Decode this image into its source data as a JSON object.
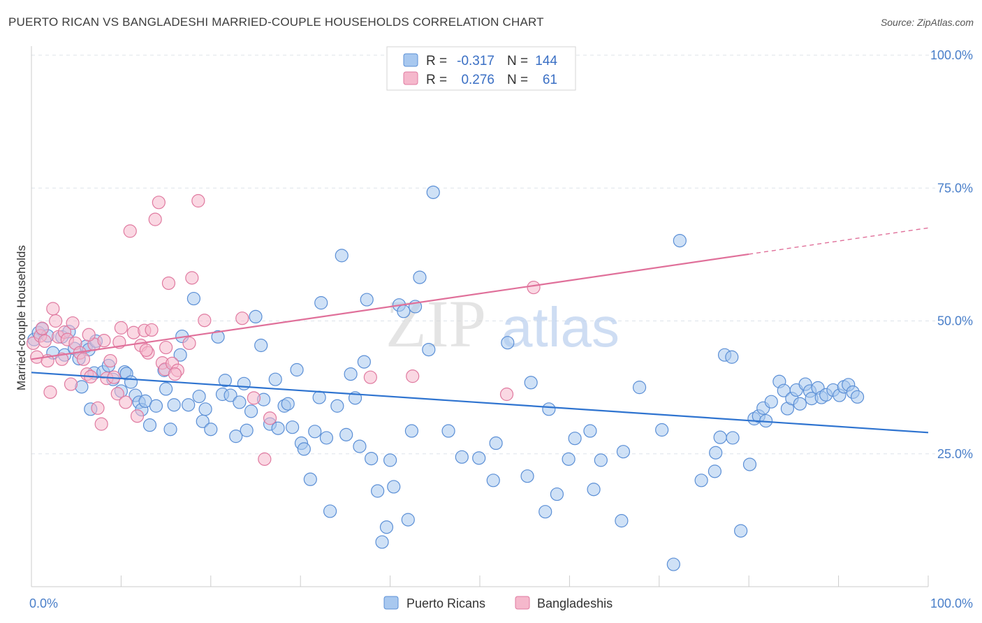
{
  "header": {
    "title": "PUERTO RICAN VS BANGLADESHI MARRIED-COUPLE HOUSEHOLDS CORRELATION CHART",
    "source": "Source: ZipAtlas.com"
  },
  "watermark": {
    "zip": "ZIP",
    "atlas": "atlas"
  },
  "colors": {
    "blue_fill": "#a8c8ef",
    "blue_stroke": "#5b8fd6",
    "blue_line": "#2f74d0",
    "pink_fill": "#f5b8cc",
    "pink_stroke": "#e07aa0",
    "pink_line": "#e0709a",
    "tick_label": "#4a7fc9",
    "grid": "#dde3ea"
  },
  "legend": {
    "rows": [
      {
        "r_label": "R =",
        "r_value": "-0.317",
        "n_label": "N =",
        "n_value": "144"
      },
      {
        "r_label": "R =",
        "r_value": "0.276",
        "n_label": "N =",
        "n_value": "61"
      }
    ]
  },
  "bottom_legend": {
    "series1": "Puerto Ricans",
    "series2": "Bangladeshis"
  },
  "chart_data": {
    "type": "scatter",
    "xlabel": "",
    "ylabel": "Married-couple Households",
    "xlim": [
      0,
      100
    ],
    "ylim": [
      0,
      100
    ],
    "x_tick_labels": [
      "0.0%",
      "100.0%"
    ],
    "y_ticks": [
      25,
      50,
      75,
      100
    ],
    "y_tick_labels": [
      "25.0%",
      "50.0%",
      "75.0%",
      "100.0%"
    ],
    "grid": true,
    "legend_position": "top-center",
    "series": [
      {
        "name": "Puerto Ricans",
        "trend": {
          "x0": 0,
          "y0": 40.3,
          "x1": 100,
          "y1": 29.0,
          "solid_to": 100
        },
        "points": [
          [
            0.3,
            46.5
          ],
          [
            0.8,
            47.8
          ],
          [
            1.2,
            48.5
          ],
          [
            1.8,
            47.2
          ],
          [
            2.4,
            44.0
          ],
          [
            3.4,
            47.0
          ],
          [
            3.7,
            43.6
          ],
          [
            4.2,
            48.0
          ],
          [
            4.8,
            44.8
          ],
          [
            5.3,
            42.9
          ],
          [
            5.6,
            37.6
          ],
          [
            6.1,
            45.2
          ],
          [
            6.4,
            44.6
          ],
          [
            6.6,
            33.4
          ],
          [
            7.0,
            40.2
          ],
          [
            7.2,
            46.2
          ],
          [
            8.0,
            40.4
          ],
          [
            8.6,
            41.6
          ],
          [
            9.1,
            39.0
          ],
          [
            10.0,
            36.8
          ],
          [
            10.4,
            40.4
          ],
          [
            10.6,
            40.1
          ],
          [
            11.1,
            38.5
          ],
          [
            11.6,
            36.0
          ],
          [
            12.0,
            34.7
          ],
          [
            12.3,
            33.3
          ],
          [
            12.7,
            34.9
          ],
          [
            13.2,
            30.4
          ],
          [
            13.9,
            34.0
          ],
          [
            14.8,
            40.7
          ],
          [
            15.0,
            37.2
          ],
          [
            15.5,
            29.6
          ],
          [
            15.9,
            34.2
          ],
          [
            16.6,
            43.6
          ],
          [
            16.8,
            47.1
          ],
          [
            17.5,
            34.2
          ],
          [
            18.1,
            54.2
          ],
          [
            18.7,
            35.8
          ],
          [
            19.1,
            31.1
          ],
          [
            19.4,
            33.4
          ],
          [
            20.0,
            29.6
          ],
          [
            20.8,
            47.0
          ],
          [
            21.3,
            36.2
          ],
          [
            21.6,
            38.8
          ],
          [
            22.2,
            36.0
          ],
          [
            22.8,
            28.3
          ],
          [
            23.2,
            34.7
          ],
          [
            23.7,
            38.2
          ],
          [
            24.0,
            29.4
          ],
          [
            24.5,
            33.0
          ],
          [
            25.0,
            50.8
          ],
          [
            25.6,
            45.4
          ],
          [
            25.9,
            35.2
          ],
          [
            26.6,
            30.6
          ],
          [
            27.2,
            39.0
          ],
          [
            27.5,
            29.8
          ],
          [
            28.2,
            34.0
          ],
          [
            28.6,
            34.4
          ],
          [
            29.1,
            30.0
          ],
          [
            29.6,
            40.8
          ],
          [
            30.1,
            27.0
          ],
          [
            30.4,
            25.9
          ],
          [
            31.1,
            20.2
          ],
          [
            31.6,
            29.2
          ],
          [
            32.1,
            35.6
          ],
          [
            32.3,
            53.4
          ],
          [
            32.9,
            28.0
          ],
          [
            33.3,
            14.2
          ],
          [
            34.1,
            34.0
          ],
          [
            34.6,
            62.3
          ],
          [
            35.1,
            28.6
          ],
          [
            35.6,
            40.0
          ],
          [
            36.1,
            35.5
          ],
          [
            36.6,
            26.4
          ],
          [
            37.1,
            42.3
          ],
          [
            37.4,
            54.0
          ],
          [
            37.9,
            24.1
          ],
          [
            38.6,
            18.0
          ],
          [
            39.1,
            8.4
          ],
          [
            39.6,
            11.2
          ],
          [
            40.0,
            23.8
          ],
          [
            40.4,
            18.8
          ],
          [
            41.0,
            53.0
          ],
          [
            41.5,
            51.8
          ],
          [
            42.0,
            12.6
          ],
          [
            42.4,
            29.3
          ],
          [
            42.8,
            52.7
          ],
          [
            43.3,
            58.2
          ],
          [
            44.3,
            44.6
          ],
          [
            44.8,
            74.2
          ],
          [
            46.5,
            29.3
          ],
          [
            48.0,
            24.4
          ],
          [
            49.9,
            24.2
          ],
          [
            51.5,
            20.0
          ],
          [
            51.8,
            27.0
          ],
          [
            53.1,
            45.9
          ],
          [
            55.3,
            20.8
          ],
          [
            55.7,
            38.4
          ],
          [
            57.3,
            14.1
          ],
          [
            57.7,
            33.4
          ],
          [
            58.6,
            17.4
          ],
          [
            59.9,
            24.0
          ],
          [
            60.6,
            27.9
          ],
          [
            62.3,
            29.3
          ],
          [
            62.7,
            18.3
          ],
          [
            63.5,
            23.8
          ],
          [
            65.8,
            12.4
          ],
          [
            66.0,
            25.4
          ],
          [
            67.8,
            37.5
          ],
          [
            70.3,
            29.5
          ],
          [
            71.6,
            4.2
          ],
          [
            72.3,
            65.1
          ],
          [
            74.7,
            20.0
          ],
          [
            76.2,
            21.7
          ],
          [
            76.3,
            25.2
          ],
          [
            76.8,
            28.1
          ],
          [
            77.3,
            43.6
          ],
          [
            78.1,
            43.2
          ],
          [
            78.2,
            28.0
          ],
          [
            79.1,
            10.5
          ],
          [
            80.1,
            23.0
          ],
          [
            80.6,
            31.6
          ],
          [
            81.1,
            32.1
          ],
          [
            81.6,
            33.6
          ],
          [
            81.9,
            31.2
          ],
          [
            82.5,
            34.8
          ],
          [
            83.4,
            38.6
          ],
          [
            83.9,
            36.9
          ],
          [
            84.3,
            33.5
          ],
          [
            84.8,
            35.4
          ],
          [
            85.3,
            37.0
          ],
          [
            85.7,
            34.4
          ],
          [
            86.3,
            38.1
          ],
          [
            86.8,
            36.8
          ],
          [
            87.0,
            35.4
          ],
          [
            87.7,
            37.4
          ],
          [
            88.1,
            35.6
          ],
          [
            88.6,
            36.1
          ],
          [
            89.4,
            37.0
          ],
          [
            90.1,
            36.0
          ],
          [
            90.6,
            37.6
          ],
          [
            91.1,
            38.0
          ],
          [
            91.6,
            36.6
          ],
          [
            92.1,
            35.7
          ]
        ]
      },
      {
        "name": "Bangladeshis",
        "trend": {
          "x0": 0,
          "y0": 42.8,
          "x1": 100,
          "y1": 67.5,
          "solid_to": 80
        },
        "points": [
          [
            0.2,
            45.8
          ],
          [
            0.6,
            43.2
          ],
          [
            1.0,
            47.2
          ],
          [
            1.2,
            48.6
          ],
          [
            1.5,
            46.2
          ],
          [
            1.8,
            42.5
          ],
          [
            2.1,
            36.6
          ],
          [
            2.4,
            52.3
          ],
          [
            2.7,
            50.0
          ],
          [
            3.0,
            47.0
          ],
          [
            3.4,
            42.8
          ],
          [
            3.7,
            47.9
          ],
          [
            4.0,
            46.5
          ],
          [
            4.4,
            38.1
          ],
          [
            4.6,
            49.6
          ],
          [
            4.9,
            45.8
          ],
          [
            5.4,
            44.0
          ],
          [
            5.8,
            42.8
          ],
          [
            6.2,
            40.0
          ],
          [
            6.6,
            39.5
          ],
          [
            7.0,
            45.6
          ],
          [
            7.4,
            33.6
          ],
          [
            7.8,
            30.6
          ],
          [
            8.1,
            46.3
          ],
          [
            8.4,
            39.2
          ],
          [
            8.8,
            42.5
          ],
          [
            9.2,
            39.4
          ],
          [
            9.6,
            36.3
          ],
          [
            10.0,
            48.7
          ],
          [
            10.5,
            34.7
          ],
          [
            11.0,
            66.9
          ],
          [
            11.4,
            47.8
          ],
          [
            11.8,
            32.1
          ],
          [
            12.2,
            45.4
          ],
          [
            12.6,
            48.2
          ],
          [
            13.0,
            44.0
          ],
          [
            13.4,
            48.3
          ],
          [
            13.8,
            69.1
          ],
          [
            14.2,
            72.3
          ],
          [
            14.6,
            42.1
          ],
          [
            14.9,
            40.9
          ],
          [
            15.3,
            57.1
          ],
          [
            15.7,
            42.0
          ],
          [
            16.3,
            40.7
          ],
          [
            17.6,
            45.8
          ],
          [
            17.9,
            58.1
          ],
          [
            18.6,
            72.6
          ],
          [
            19.3,
            50.1
          ],
          [
            23.5,
            50.5
          ],
          [
            24.8,
            35.5
          ],
          [
            26.6,
            31.7
          ],
          [
            26.0,
            24.0
          ],
          [
            37.8,
            39.4
          ],
          [
            42.5,
            39.6
          ],
          [
            53.0,
            36.2
          ],
          [
            56.0,
            56.3
          ],
          [
            6.4,
            47.4
          ],
          [
            9.8,
            46.0
          ],
          [
            12.8,
            44.5
          ],
          [
            15.0,
            45.0
          ],
          [
            16.0,
            40.0
          ]
        ]
      }
    ]
  }
}
